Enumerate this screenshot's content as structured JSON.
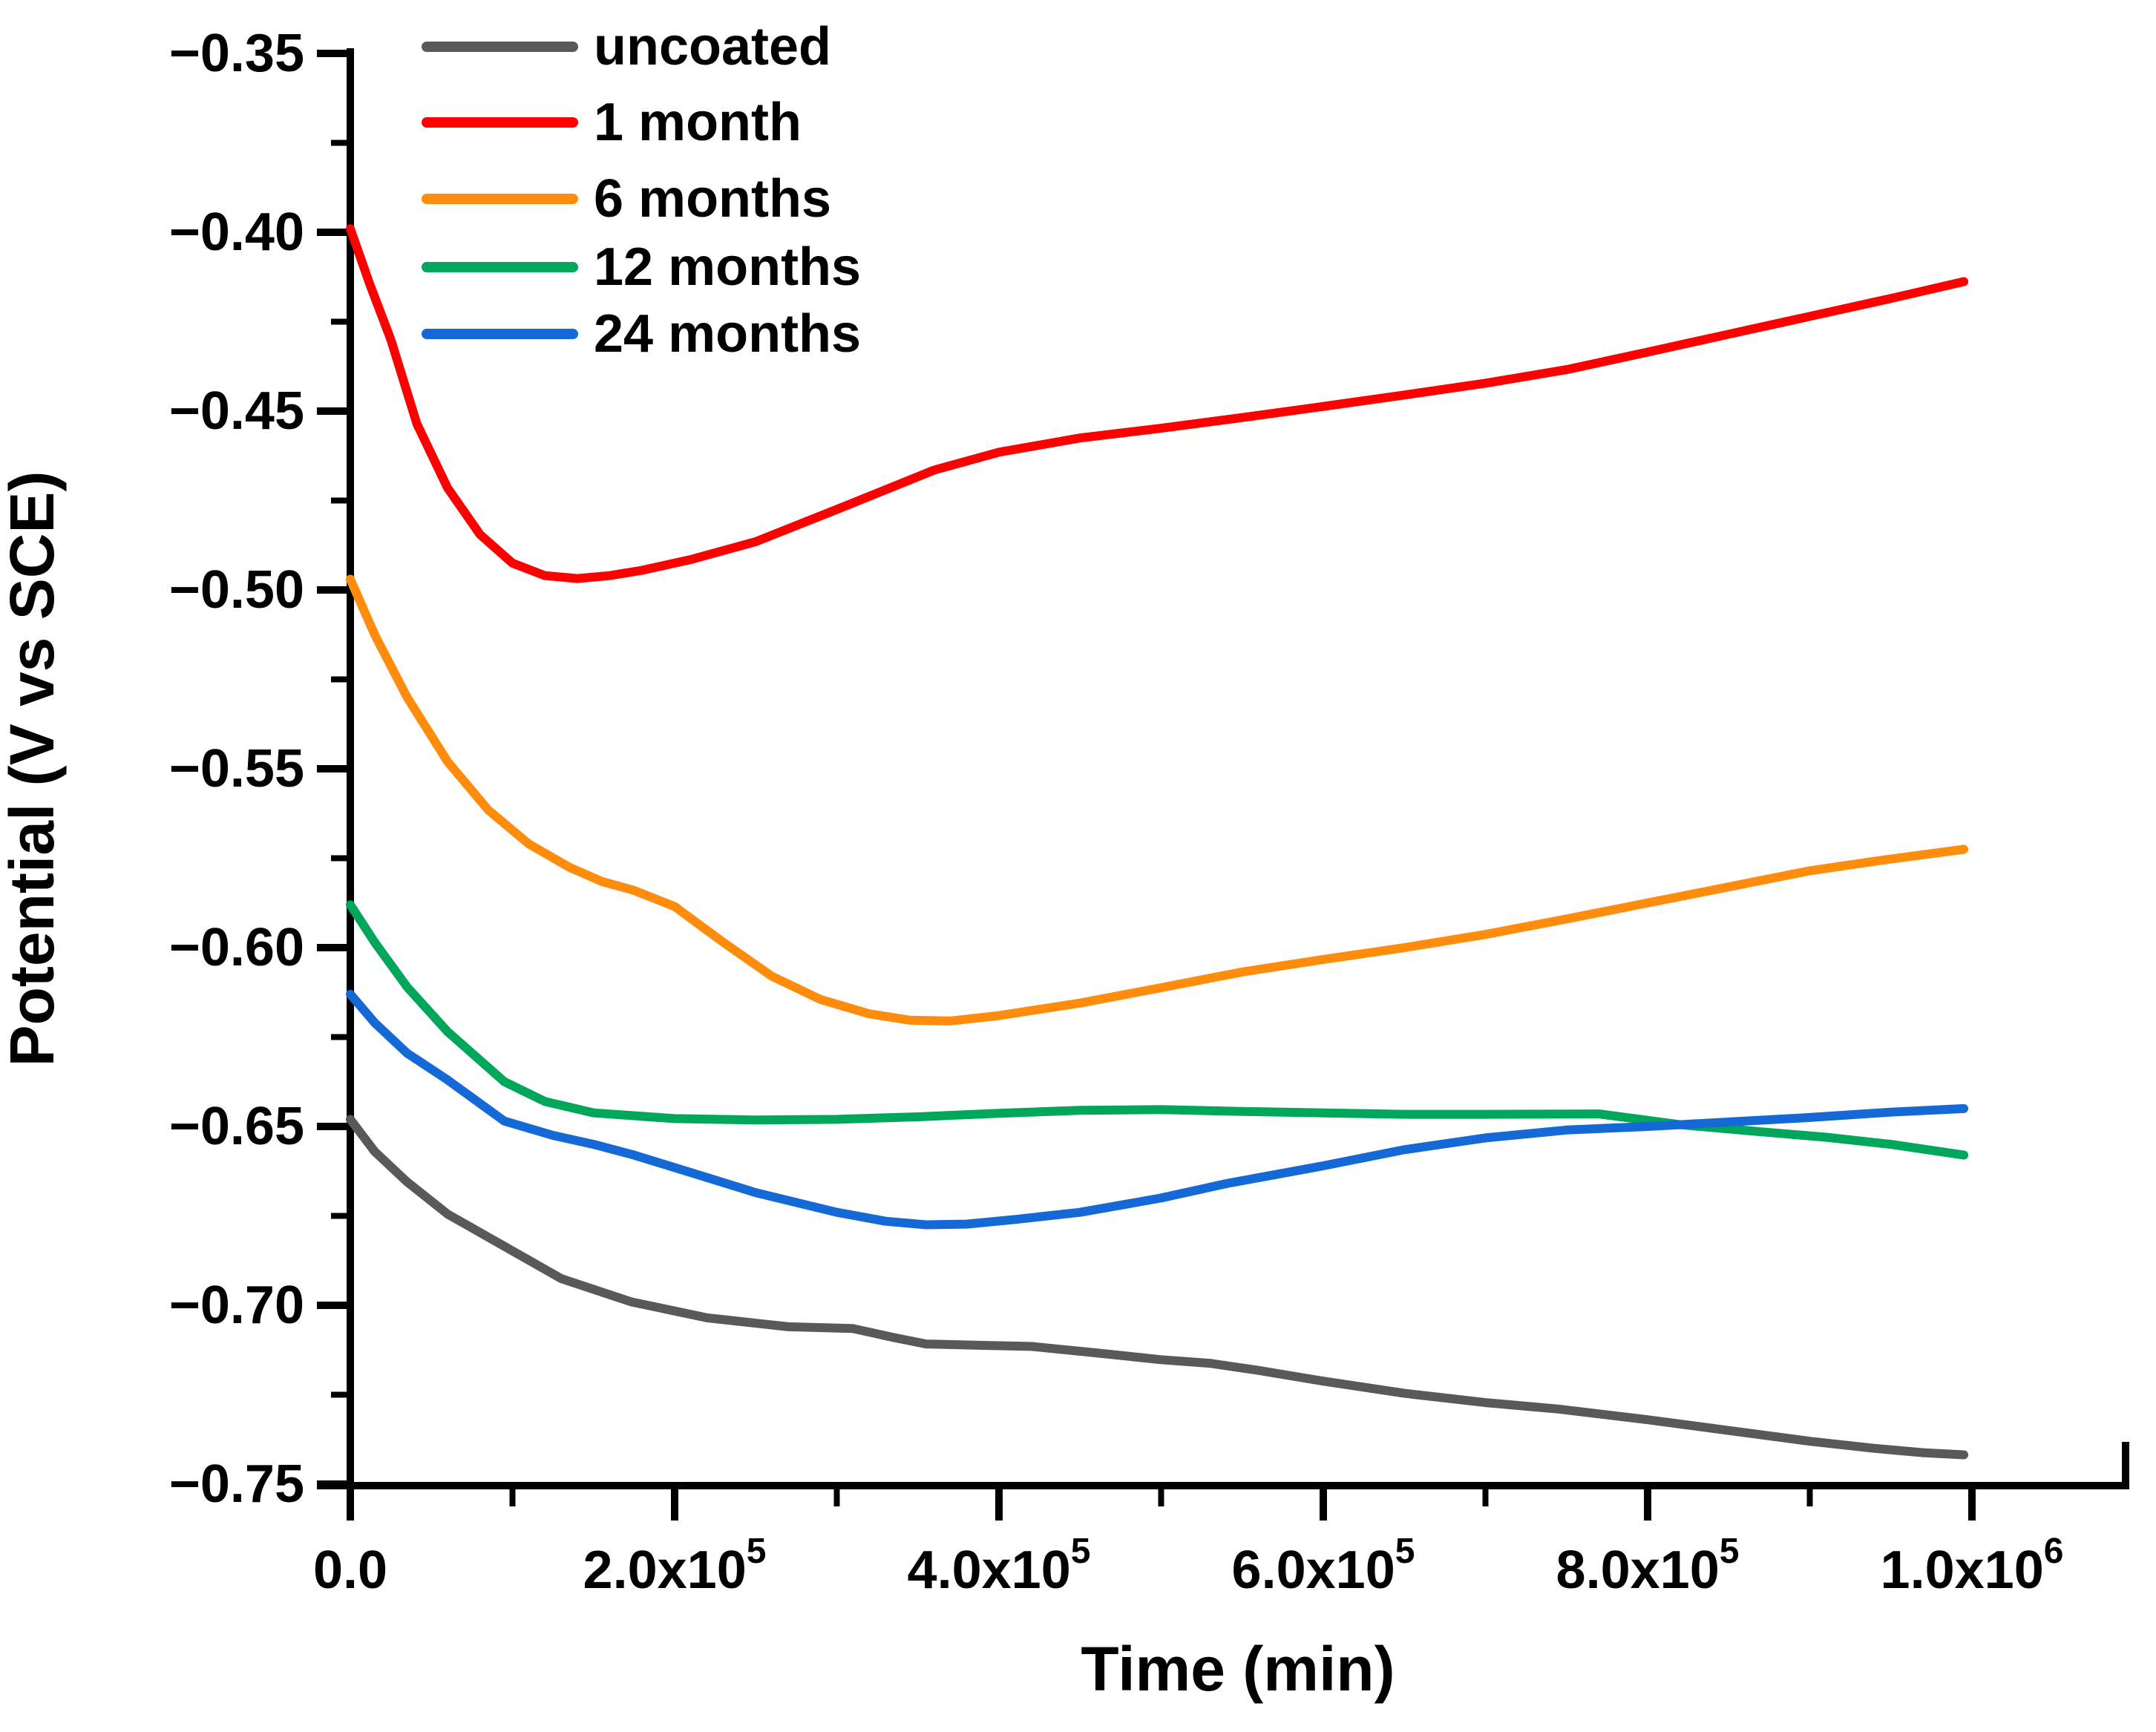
{
  "chart_data": {
    "type": "line",
    "title": "",
    "xlabel": "Time (min)",
    "ylabel": "Potential (V vs SCE)",
    "xlim": [
      0,
      1095000
    ],
    "ylim": [
      -0.75,
      -0.35
    ],
    "grid": false,
    "legend_position": "top-left-inside",
    "x_axis": {
      "major_ticks": [
        {
          "value": 0,
          "mantissa": "0.0",
          "exponent": null
        },
        {
          "value": 200000,
          "mantissa": "2.0x10",
          "exponent": "5"
        },
        {
          "value": 400000,
          "mantissa": "4.0x10",
          "exponent": "5"
        },
        {
          "value": 600000,
          "mantissa": "6.0x10",
          "exponent": "5"
        },
        {
          "value": 800000,
          "mantissa": "8.0x10",
          "exponent": "5"
        },
        {
          "value": 1000000,
          "mantissa": "1.0x10",
          "exponent": "6"
        }
      ],
      "minor_ticks": [
        100000,
        300000,
        500000,
        700000,
        900000
      ]
    },
    "y_axis": {
      "major_ticks": [
        {
          "value": -0.35,
          "label": "−0.35"
        },
        {
          "value": -0.4,
          "label": "−0.40"
        },
        {
          "value": -0.45,
          "label": "−0.45"
        },
        {
          "value": -0.5,
          "label": "−0.50"
        },
        {
          "value": -0.55,
          "label": "−0.55"
        },
        {
          "value": -0.6,
          "label": "−0.60"
        },
        {
          "value": -0.65,
          "label": "−0.65"
        },
        {
          "value": -0.7,
          "label": "−0.70"
        },
        {
          "value": -0.75,
          "label": "−0.75"
        }
      ],
      "minor_ticks": [
        -0.375,
        -0.425,
        -0.475,
        -0.525,
        -0.575,
        -0.625,
        -0.675,
        -0.725
      ]
    },
    "series": [
      {
        "name": "uncoated",
        "color": "#595959",
        "points": [
          [
            0,
            -0.648
          ],
          [
            15000,
            -0.657
          ],
          [
            35000,
            -0.6655
          ],
          [
            60000,
            -0.6745
          ],
          [
            95000,
            -0.6835
          ],
          [
            130000,
            -0.6925
          ],
          [
            173000,
            -0.699
          ],
          [
            220000,
            -0.7035
          ],
          [
            270000,
            -0.706
          ],
          [
            310000,
            -0.7065
          ],
          [
            335000,
            -0.709
          ],
          [
            355000,
            -0.7108
          ],
          [
            390000,
            -0.7112
          ],
          [
            420000,
            -0.7115
          ],
          [
            460000,
            -0.7133
          ],
          [
            500000,
            -0.7152
          ],
          [
            530000,
            -0.7162
          ],
          [
            560000,
            -0.7182
          ],
          [
            600000,
            -0.7212
          ],
          [
            650000,
            -0.7246
          ],
          [
            700000,
            -0.7272
          ],
          [
            745000,
            -0.729
          ],
          [
            800000,
            -0.732
          ],
          [
            850000,
            -0.735
          ],
          [
            900000,
            -0.738
          ],
          [
            940000,
            -0.74
          ],
          [
            970000,
            -0.7412
          ],
          [
            995000,
            -0.7418
          ]
        ]
      },
      {
        "name": "1 month",
        "color": "#FF0000",
        "points": [
          [
            0,
            -0.399
          ],
          [
            12000,
            -0.4145
          ],
          [
            25000,
            -0.43
          ],
          [
            41000,
            -0.4535
          ],
          [
            60000,
            -0.4715
          ],
          [
            80000,
            -0.4845
          ],
          [
            100000,
            -0.4925
          ],
          [
            120000,
            -0.496
          ],
          [
            140000,
            -0.4968
          ],
          [
            160000,
            -0.496
          ],
          [
            180000,
            -0.4945
          ],
          [
            210000,
            -0.4915
          ],
          [
            250000,
            -0.4865
          ],
          [
            300000,
            -0.4775
          ],
          [
            360000,
            -0.4665
          ],
          [
            400000,
            -0.4615
          ],
          [
            450000,
            -0.4575
          ],
          [
            500000,
            -0.4548
          ],
          [
            550000,
            -0.4518
          ],
          [
            600000,
            -0.4487
          ],
          [
            650000,
            -0.4455
          ],
          [
            700000,
            -0.4422
          ],
          [
            750000,
            -0.4384
          ],
          [
            800000,
            -0.4335
          ],
          [
            840000,
            -0.4295
          ],
          [
            900000,
            -0.4235
          ],
          [
            950000,
            -0.4185
          ],
          [
            995000,
            -0.4138
          ]
        ]
      },
      {
        "name": "6 months",
        "color": "#FF8C0D",
        "points": [
          [
            0,
            -0.497
          ],
          [
            15000,
            -0.5125
          ],
          [
            35000,
            -0.53
          ],
          [
            60000,
            -0.548
          ],
          [
            85000,
            -0.5615
          ],
          [
            110000,
            -0.571
          ],
          [
            135000,
            -0.5775
          ],
          [
            155000,
            -0.5815
          ],
          [
            175000,
            -0.584
          ],
          [
            200000,
            -0.5885
          ],
          [
            230000,
            -0.5985
          ],
          [
            260000,
            -0.608
          ],
          [
            290000,
            -0.6145
          ],
          [
            320000,
            -0.6185
          ],
          [
            345000,
            -0.6203
          ],
          [
            370000,
            -0.6205
          ],
          [
            400000,
            -0.619
          ],
          [
            450000,
            -0.6155
          ],
          [
            500000,
            -0.6112
          ],
          [
            550000,
            -0.6068
          ],
          [
            600000,
            -0.6033
          ],
          [
            650000,
            -0.6
          ],
          [
            700000,
            -0.5963
          ],
          [
            750000,
            -0.592
          ],
          [
            800000,
            -0.5875
          ],
          [
            850000,
            -0.583
          ],
          [
            900000,
            -0.5785
          ],
          [
            950000,
            -0.5752
          ],
          [
            995000,
            -0.5725
          ]
        ]
      },
      {
        "name": "12 months",
        "color": "#00A75B",
        "points": [
          [
            0,
            -0.588
          ],
          [
            15000,
            -0.5985
          ],
          [
            35000,
            -0.611
          ],
          [
            60000,
            -0.6235
          ],
          [
            95000,
            -0.6375
          ],
          [
            120000,
            -0.643
          ],
          [
            150000,
            -0.6462
          ],
          [
            200000,
            -0.6478
          ],
          [
            250000,
            -0.6482
          ],
          [
            300000,
            -0.648
          ],
          [
            350000,
            -0.6473
          ],
          [
            400000,
            -0.6463
          ],
          [
            450000,
            -0.6455
          ],
          [
            500000,
            -0.6453
          ],
          [
            550000,
            -0.6458
          ],
          [
            600000,
            -0.6462
          ],
          [
            650000,
            -0.6466
          ],
          [
            700000,
            -0.6466
          ],
          [
            770000,
            -0.6465
          ],
          [
            820000,
            -0.6495
          ],
          [
            870000,
            -0.6515
          ],
          [
            910000,
            -0.653
          ],
          [
            950000,
            -0.655
          ],
          [
            995000,
            -0.658
          ]
        ]
      },
      {
        "name": "24 months",
        "color": "#1569D6",
        "points": [
          [
            0,
            -0.613
          ],
          [
            15000,
            -0.621
          ],
          [
            35000,
            -0.6295
          ],
          [
            60000,
            -0.637
          ],
          [
            95000,
            -0.6485
          ],
          [
            125000,
            -0.6525
          ],
          [
            150000,
            -0.655
          ],
          [
            175000,
            -0.658
          ],
          [
            200000,
            -0.6615
          ],
          [
            250000,
            -0.6685
          ],
          [
            300000,
            -0.674
          ],
          [
            330000,
            -0.6765
          ],
          [
            355000,
            -0.6775
          ],
          [
            380000,
            -0.6773
          ],
          [
            410000,
            -0.676
          ],
          [
            450000,
            -0.674
          ],
          [
            500000,
            -0.67
          ],
          [
            540000,
            -0.666
          ],
          [
            600000,
            -0.661
          ],
          [
            650000,
            -0.6565
          ],
          [
            700000,
            -0.6532
          ],
          [
            750000,
            -0.651
          ],
          [
            800000,
            -0.65
          ],
          [
            820000,
            -0.6495
          ],
          [
            860000,
            -0.6485
          ],
          [
            900000,
            -0.6475
          ],
          [
            950000,
            -0.646
          ],
          [
            995000,
            -0.645
          ]
        ]
      }
    ]
  }
}
